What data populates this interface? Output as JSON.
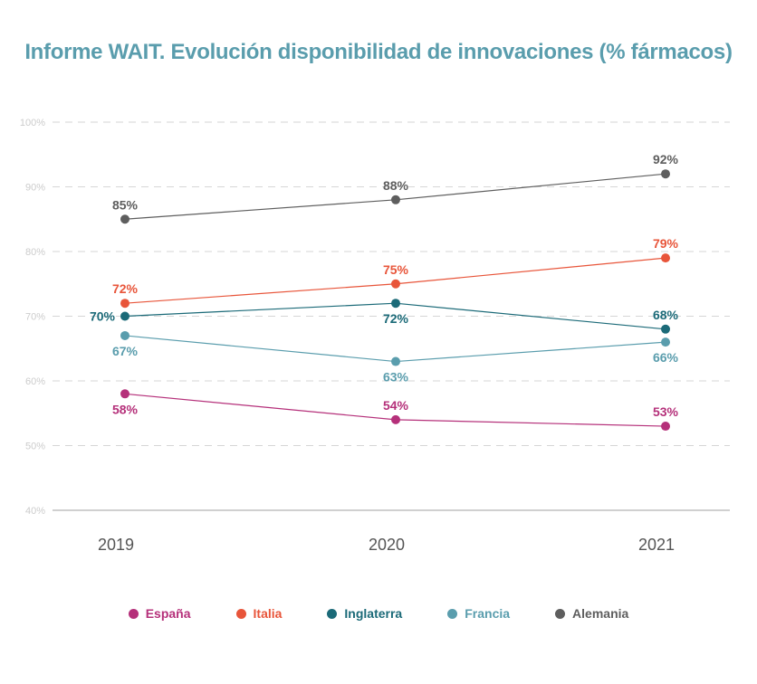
{
  "chart_data": {
    "type": "line",
    "title": "Informe WAIT. Evolución disponibilidad de innovaciones (% fármacos)",
    "categories": [
      "2019",
      "2020",
      "2021"
    ],
    "ylim": [
      40,
      100
    ],
    "y_ticks": [
      40,
      50,
      60,
      70,
      80,
      90,
      100
    ],
    "y_tick_labels": [
      "40%",
      "50%",
      "60%",
      "70%",
      "80%",
      "90%",
      "100%"
    ],
    "grid": true,
    "legend_position": "bottom",
    "series": [
      {
        "name": "España",
        "color": "#B5307A",
        "values": [
          58,
          54,
          53
        ],
        "labels": [
          "58%",
          "54%",
          "53%"
        ],
        "label_pos": [
          "below",
          "above",
          "above"
        ]
      },
      {
        "name": "Italia",
        "color": "#E8553A",
        "values": [
          72,
          75,
          79
        ],
        "labels": [
          "72%",
          "75%",
          "79%"
        ],
        "label_pos": [
          "above",
          "above",
          "above"
        ]
      },
      {
        "name": "Inglaterra",
        "color": "#1B6A78",
        "values": [
          70,
          72,
          68
        ],
        "labels": [
          "70%",
          "72%",
          "68%"
        ],
        "label_pos": [
          "left",
          "below",
          "above"
        ]
      },
      {
        "name": "Francia",
        "color": "#5A9DAD",
        "values": [
          67,
          63,
          66
        ],
        "labels": [
          "67%",
          "63%",
          "66%"
        ],
        "label_pos": [
          "below",
          "below",
          "below"
        ]
      },
      {
        "name": "Alemania",
        "color": "#5E5E5E",
        "values": [
          85,
          88,
          92
        ],
        "labels": [
          "85%",
          "88%",
          "92%"
        ],
        "label_pos": [
          "above",
          "above",
          "above"
        ]
      }
    ],
    "colors": {
      "title": "#5A9DAD",
      "axis_text": "#555555",
      "tick_text": "#cccccc",
      "grid": "#d6d6d6",
      "axis": "#d0d0d0"
    }
  }
}
